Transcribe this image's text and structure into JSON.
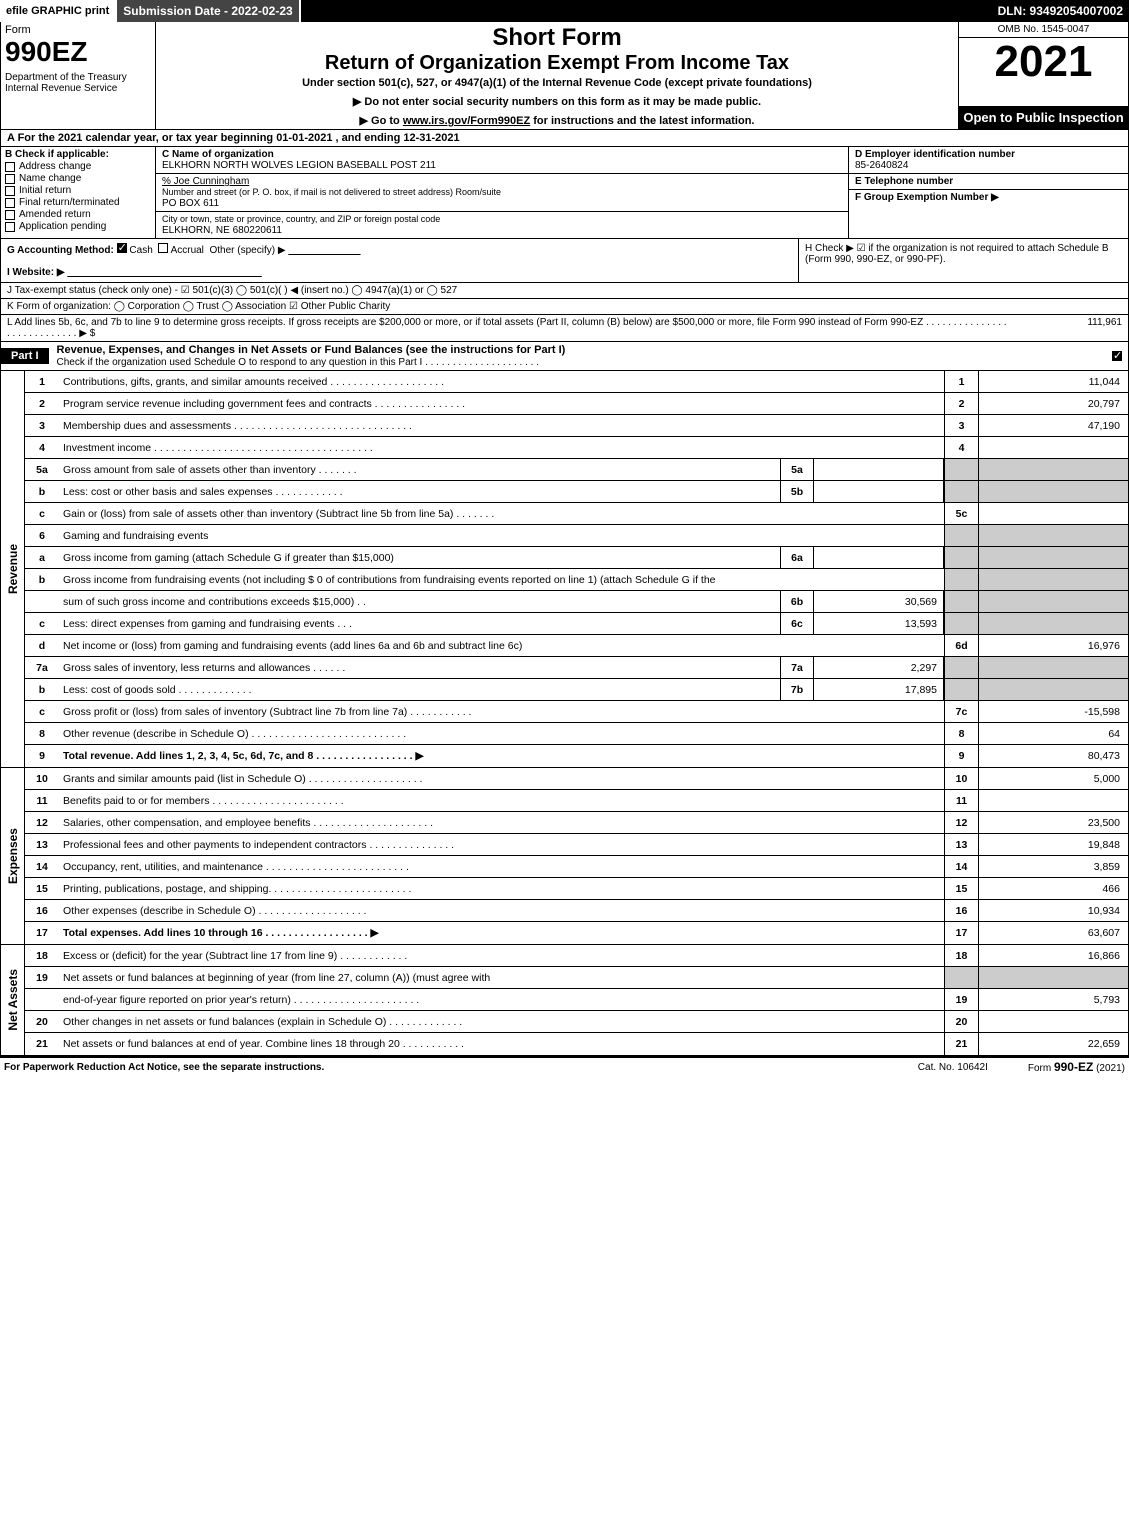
{
  "topbar": {
    "efile": "efile GRAPHIC print",
    "sub_date": "Submission Date - 2022-02-23",
    "dln": "DLN: 93492054007002"
  },
  "header": {
    "form_word": "Form",
    "form_num": "990EZ",
    "dept": "Department of the Treasury\nInternal Revenue Service",
    "short": "Short Form",
    "return": "Return of Organization Exempt From Income Tax",
    "under": "Under section 501(c), 527, or 4947(a)(1) of the Internal Revenue Code (except private foundations)",
    "donot": "▶ Do not enter social security numbers on this form as it may be made public.",
    "goto_pre": "▶ Go to ",
    "goto_link": "www.irs.gov/Form990EZ",
    "goto_post": " for instructions and the latest information.",
    "omb": "OMB No. 1545-0047",
    "year": "2021",
    "open": "Open to Public Inspection"
  },
  "sectionA": "A  For the 2021 calendar year, or tax year beginning 01-01-2021 , and ending 12-31-2021",
  "B": {
    "title": "B  Check if applicable:",
    "items": [
      "Address change",
      "Name change",
      "Initial return",
      "Final return/terminated",
      "Amended return",
      "Application pending"
    ]
  },
  "C": {
    "name_lab": "C Name of organization",
    "name": "ELKHORN NORTH WOLVES LEGION BASEBALL POST 211",
    "careof_lab": "% Joe Cunningham",
    "street_lab": "Number and street (or P. O. box, if mail is not delivered to street address)       Room/suite",
    "street": "PO BOX 611",
    "city_lab": "City or town, state or province, country, and ZIP or foreign postal code",
    "city": "ELKHORN, NE  680220611"
  },
  "D": {
    "lab": "D Employer identification number",
    "val": "85-2640824"
  },
  "E": {
    "lab": "E Telephone number",
    "val": ""
  },
  "F": {
    "lab": "F Group Exemption Number   ▶",
    "val": ""
  },
  "G": {
    "lab": "G Accounting Method:",
    "cash": "Cash",
    "accrual": "Accrual",
    "other": "Other (specify) ▶"
  },
  "H": "H   Check ▶  ☑  if the organization is not required to attach Schedule B (Form 990, 990-EZ, or 990-PF).",
  "I": "I Website: ▶",
  "J": "J Tax-exempt status (check only one) - ☑ 501(c)(3)  ◯ 501(c)(  ) ◀ (insert no.)  ◯ 4947(a)(1) or  ◯ 527",
  "K": "K Form of organization:   ◯ Corporation   ◯ Trust   ◯ Association   ☑ Other Public Charity",
  "L": {
    "text": "L Add lines 5b, 6c, and 7b to line 9 to determine gross receipts. If gross receipts are $200,000 or more, or if total assets (Part II, column (B) below) are $500,000 or more, file Form 990 instead of Form 990-EZ  .  .  .  .  .  .  .  .  .  .  .  .  .  .  .  .  .  .  .  .  .  .  .  .  .  .  .  .  ▶ $",
    "amount": "111,961"
  },
  "partI": {
    "label": "Part I",
    "title": "Revenue, Expenses, and Changes in Net Assets or Fund Balances (see the instructions for Part I)",
    "check": "Check if the organization used Schedule O to respond to any question in this Part I  .  .  .  .  .  .  .  .  .  .  .  .  .  .  .  .  .  .  .  .  ."
  },
  "sides": {
    "revenue": "Revenue",
    "expenses": "Expenses",
    "netassets": "Net Assets"
  },
  "rev": [
    {
      "n": "1",
      "d": "Contributions, gifts, grants, and similar amounts received  .  .  .  .  .  .  .  .  .  .  .  .  .  .  .  .  .  .  .  .",
      "rn": "1",
      "rv": "11,044"
    },
    {
      "n": "2",
      "d": "Program service revenue including government fees and contracts  .  .  .  .  .  .  .  .  .  .  .  .  .  .  .  .",
      "rn": "2",
      "rv": "20,797"
    },
    {
      "n": "3",
      "d": "Membership dues and assessments  .  .  .  .  .  .  .  .  .  .  .  .  .  .  .  .  .  .  .  .  .  .  .  .  .  .  .  .  .  .  .",
      "rn": "3",
      "rv": "47,190"
    },
    {
      "n": "4",
      "d": "Investment income  .  .  .  .  .  .  .  .  .  .  .  .  .  .  .  .  .  .  .  .  .  .  .  .  .  .  .  .  .  .  .  .  .  .  .  .  .  .",
      "rn": "4",
      "rv": ""
    },
    {
      "n": "5a",
      "d": "Gross amount from sale of assets other than inventory  .  .  .  .  .  .  .",
      "sn": "5a",
      "sv": "",
      "shade": true
    },
    {
      "n": "b",
      "d": "Less: cost or other basis and sales expenses  .  .  .  .  .  .  .  .  .  .  .  .",
      "sn": "5b",
      "sv": "",
      "shade": true
    },
    {
      "n": "c",
      "d": "Gain or (loss) from sale of assets other than inventory (Subtract line 5b from line 5a)  .  .  .  .  .  .  .",
      "rn": "5c",
      "rv": ""
    },
    {
      "n": "6",
      "d": "Gaming and fundraising events",
      "shade": true
    },
    {
      "n": "a",
      "d": "Gross income from gaming (attach Schedule G if greater than $15,000)",
      "sn": "6a",
      "sv": "",
      "shade": true
    },
    {
      "n": "b",
      "d": "Gross income from fundraising events (not including $ 0                     of contributions from fundraising events reported on line 1) (attach Schedule G if the",
      "nosub": true,
      "shade": true
    },
    {
      "n": "",
      "d": "sum of such gross income and contributions exceeds $15,000)      .   .",
      "sn": "6b",
      "sv": "30,569",
      "shade": true
    },
    {
      "n": "c",
      "d": "Less: direct expenses from gaming and fundraising events      .   .   .",
      "sn": "6c",
      "sv": "13,593",
      "shade": true
    },
    {
      "n": "d",
      "d": "Net income or (loss) from gaming and fundraising events (add lines 6a and 6b and subtract line 6c)",
      "rn": "6d",
      "rv": "16,976"
    },
    {
      "n": "7a",
      "d": "Gross sales of inventory, less returns and allowances  .  .  .  .  .  .",
      "sn": "7a",
      "sv": "2,297",
      "shade": true
    },
    {
      "n": "b",
      "d": "Less: cost of goods sold           .   .   .   .   .   .   .   .   .   .   .   .   .",
      "sn": "7b",
      "sv": "17,895",
      "shade": true
    },
    {
      "n": "c",
      "d": "Gross profit or (loss) from sales of inventory (Subtract line 7b from line 7a)  .  .  .  .  .  .  .  .  .  .  .",
      "rn": "7c",
      "rv": "-15,598"
    },
    {
      "n": "8",
      "d": "Other revenue (describe in Schedule O)  .  .  .  .  .  .  .  .  .  .  .  .  .  .  .  .  .  .  .  .  .  .  .  .  .  .  .",
      "rn": "8",
      "rv": "64"
    },
    {
      "n": "9",
      "d": "Total revenue. Add lines 1, 2, 3, 4, 5c, 6d, 7c, and 8   .  .  .  .  .  .  .  .  .  .  .  .  .  .  .  .  .    ▶",
      "rn": "9",
      "rv": "80,473",
      "bold": true
    }
  ],
  "exp": [
    {
      "n": "10",
      "d": "Grants and similar amounts paid (list in Schedule O)  .  .  .  .  .  .  .  .  .  .  .  .  .  .  .  .  .  .  .  .",
      "rn": "10",
      "rv": "5,000"
    },
    {
      "n": "11",
      "d": "Benefits paid to or for members      .   .   .   .   .   .   .   .   .   .   .   .   .   .   .   .   .   .   .   .   .   .   .",
      "rn": "11",
      "rv": ""
    },
    {
      "n": "12",
      "d": "Salaries, other compensation, and employee benefits .  .  .  .  .  .  .  .  .  .  .  .  .  .  .  .  .  .  .  .  .",
      "rn": "12",
      "rv": "23,500"
    },
    {
      "n": "13",
      "d": "Professional fees and other payments to independent contractors  .  .  .  .  .  .  .  .  .  .  .  .  .  .  .",
      "rn": "13",
      "rv": "19,848"
    },
    {
      "n": "14",
      "d": "Occupancy, rent, utilities, and maintenance .  .  .  .  .  .  .  .  .  .  .  .  .  .  .  .  .  .  .  .  .  .  .  .  .",
      "rn": "14",
      "rv": "3,859"
    },
    {
      "n": "15",
      "d": "Printing, publications, postage, and shipping.  .  .  .  .  .  .  .  .  .  .  .  .  .  .  .  .  .  .  .  .  .  .  .  .",
      "rn": "15",
      "rv": "466"
    },
    {
      "n": "16",
      "d": "Other expenses (describe in Schedule O)      .   .   .   .   .   .   .   .   .   .   .   .   .   .   .   .   .   .   .",
      "rn": "16",
      "rv": "10,934"
    },
    {
      "n": "17",
      "d": "Total expenses. Add lines 10 through 16       .   .   .   .   .   .   .   .   .   .   .   .   .   .   .   .   .   .    ▶",
      "rn": "17",
      "rv": "63,607",
      "bold": true
    }
  ],
  "net": [
    {
      "n": "18",
      "d": "Excess or (deficit) for the year (Subtract line 17 from line 9)         .   .   .   .   .   .   .   .   .   .   .   .",
      "rn": "18",
      "rv": "16,866"
    },
    {
      "n": "19",
      "d": "Net assets or fund balances at beginning of year (from line 27, column (A)) (must agree with",
      "nosub": true,
      "shade": true
    },
    {
      "n": "",
      "d": "end-of-year figure reported on prior year's return) .  .  .  .  .  .  .  .  .  .  .  .  .  .  .  .  .  .  .  .  .  .",
      "rn": "19",
      "rv": "5,793"
    },
    {
      "n": "20",
      "d": "Other changes in net assets or fund balances (explain in Schedule O) .  .  .  .  .  .  .  .  .  .  .  .  .",
      "rn": "20",
      "rv": ""
    },
    {
      "n": "21",
      "d": "Net assets or fund balances at end of year. Combine lines 18 through 20 .  .  .  .  .  .  .  .  .  .  .",
      "rn": "21",
      "rv": "22,659"
    }
  ],
  "footer": {
    "left": "For Paperwork Reduction Act Notice, see the separate instructions.",
    "mid": "Cat. No. 10642I",
    "right_pre": "Form ",
    "right_bold": "990-EZ",
    "right_post": " (2021)"
  }
}
